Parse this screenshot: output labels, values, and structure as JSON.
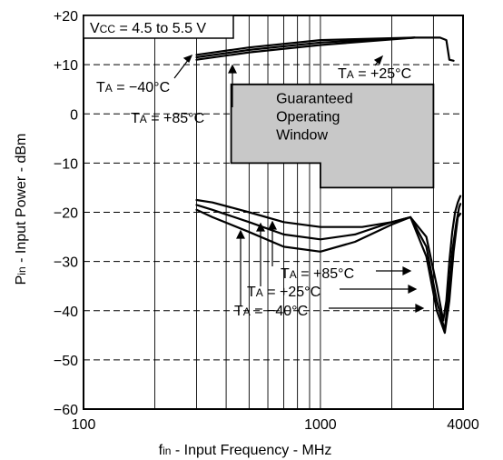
{
  "chart_data": {
    "type": "line",
    "xlabel": {
      "main": "f",
      "sub": "in",
      "rest": " - Input Frequency - MHz"
    },
    "ylabel": {
      "main": "P",
      "sub": "in",
      "rest": " - Input Power - dBm"
    },
    "x_scale": "log",
    "xlim": [
      100,
      4000
    ],
    "ylim": [
      -60,
      20
    ],
    "x_ticks": [
      {
        "v": 100,
        "label": "100"
      },
      {
        "v": 1000,
        "label": "1000"
      },
      {
        "v": 4000,
        "label": "4000"
      }
    ],
    "y_ticks": [
      {
        "v": 20,
        "label": "+20"
      },
      {
        "v": 10,
        "label": "+10"
      },
      {
        "v": 0,
        "label": "0"
      },
      {
        "v": -10,
        "label": "−10"
      },
      {
        "v": -20,
        "label": "−20"
      },
      {
        "v": -30,
        "label": "−30"
      },
      {
        "v": -40,
        "label": "−40"
      },
      {
        "v": -50,
        "label": "−50"
      },
      {
        "v": -60,
        "label": "−60"
      }
    ],
    "grid": true,
    "condition_label": {
      "main": "V",
      "sub": "CC",
      "rest": " = 4.5 to 5.5 V"
    },
    "upper_series": [
      {
        "name": "TA = −40°C",
        "points": [
          [
            300,
            11
          ],
          [
            500,
            12.5
          ],
          [
            1000,
            14
          ],
          [
            2500,
            15.5
          ]
        ]
      },
      {
        "name": "TA = +25°C",
        "points": [
          [
            300,
            11.5
          ],
          [
            500,
            13
          ],
          [
            1000,
            14.5
          ],
          [
            2500,
            15.5
          ],
          [
            3200,
            15.5
          ],
          [
            3400,
            15
          ],
          [
            3500,
            11
          ],
          [
            3650,
            10.8
          ]
        ]
      },
      {
        "name": "TA = +85°C",
        "points": [
          [
            300,
            12
          ],
          [
            500,
            13.5
          ],
          [
            1000,
            15
          ],
          [
            2500,
            15.5
          ]
        ]
      }
    ],
    "lower_series": [
      {
        "name": "TA = −40°C",
        "points": [
          [
            300,
            -17.5
          ],
          [
            350,
            -18
          ],
          [
            500,
            -20
          ],
          [
            700,
            -22
          ],
          [
            1000,
            -23
          ],
          [
            1500,
            -23
          ],
          [
            2000,
            -22
          ],
          [
            2400,
            -21
          ],
          [
            2800,
            -25
          ],
          [
            3100,
            -35
          ],
          [
            3300,
            -42
          ],
          [
            3400,
            -38
          ],
          [
            3500,
            -30
          ],
          [
            3600,
            -24
          ],
          [
            3700,
            -20
          ],
          [
            3800,
            -18
          ],
          [
            3900,
            -16.7
          ]
        ]
      },
      {
        "name": "TA = +25°C",
        "points": [
          [
            300,
            -18.5
          ],
          [
            350,
            -19.5
          ],
          [
            500,
            -22
          ],
          [
            700,
            -24.5
          ],
          [
            1000,
            -25.5
          ],
          [
            1400,
            -24.5
          ],
          [
            2000,
            -22
          ],
          [
            2400,
            -21
          ],
          [
            2800,
            -27
          ],
          [
            3100,
            -38
          ],
          [
            3350,
            -44
          ],
          [
            3450,
            -38
          ],
          [
            3600,
            -28
          ],
          [
            3750,
            -22
          ],
          [
            3850,
            -19
          ],
          [
            3900,
            -18.3
          ]
        ]
      },
      {
        "name": "TA = +85°C",
        "points": [
          [
            300,
            -19.5
          ],
          [
            350,
            -21
          ],
          [
            500,
            -24
          ],
          [
            700,
            -27
          ],
          [
            1000,
            -28
          ],
          [
            1400,
            -26
          ],
          [
            2000,
            -22.5
          ],
          [
            2400,
            -21
          ],
          [
            2800,
            -29
          ],
          [
            3100,
            -40
          ],
          [
            3350,
            -44.5
          ],
          [
            3500,
            -38
          ],
          [
            3650,
            -28
          ],
          [
            3800,
            -21
          ],
          [
            3900,
            -20.3
          ]
        ]
      }
    ],
    "guaranteed_window": {
      "label_lines": [
        "Guaranteed",
        "Operating",
        "Window"
      ],
      "polygon": [
        [
          420,
          6
        ],
        [
          3000,
          6
        ],
        [
          3000,
          -15
        ],
        [
          1000,
          -15
        ],
        [
          1000,
          -10
        ],
        [
          420,
          -10
        ]
      ]
    },
    "annotations": {
      "upper_minus40": {
        "main": "T",
        "sub": "A",
        "rest": " = −40°C"
      },
      "upper_plus85": {
        "main": "T",
        "sub": "A",
        "rest": " = +85°C"
      },
      "upper_plus25": {
        "main": "T",
        "sub": "A",
        "rest": " = +25°C"
      },
      "lower_plus85": {
        "main": "T",
        "sub": "A",
        "rest": " = +85°C"
      },
      "lower_plus25": {
        "main": "T",
        "sub": "A",
        "rest": " = +25°C"
      },
      "lower_minus40": {
        "main": "T",
        "sub": "A",
        "rest": " = −40°C"
      }
    },
    "colors": {
      "line": "#000000",
      "grid": "#000000",
      "window_fill": "#c8c8c8"
    }
  }
}
